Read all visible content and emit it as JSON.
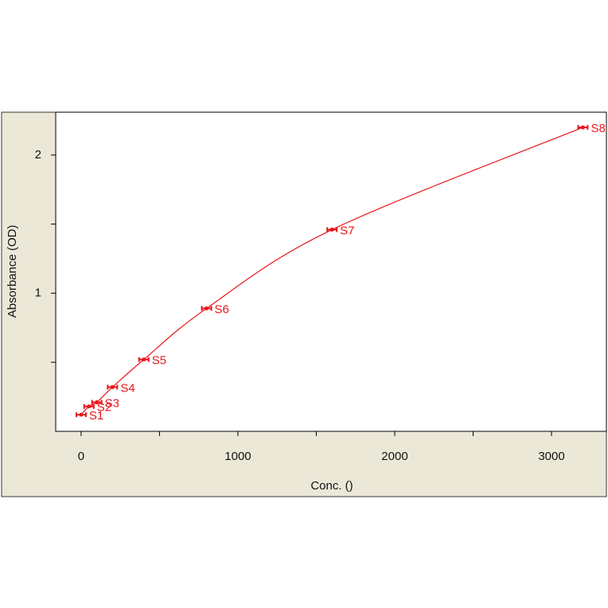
{
  "chart_data": {
    "type": "scatter",
    "x_label": "Conc. ()",
    "y_label": "Absorbance (OD)",
    "x": [
      0,
      50,
      100,
      200,
      400,
      800,
      1600,
      3200
    ],
    "values": [
      0.12,
      0.18,
      0.21,
      0.32,
      0.52,
      0.89,
      1.46,
      2.2
    ],
    "point_labels": [
      "S1",
      "S2",
      "S3",
      "S4",
      "S5",
      "S6",
      "S7",
      "S8"
    ],
    "color": "#e8161b",
    "fit_line": true,
    "xlim": [
      -162,
      3350
    ],
    "xticks": [
      0,
      1000,
      2000,
      3000
    ],
    "xminorticks": [
      500,
      1500,
      2500
    ],
    "ylim": [
      0,
      2.31
    ],
    "yticks": [
      1,
      2
    ],
    "yminorticks": [
      0.5,
      1.5
    ]
  }
}
